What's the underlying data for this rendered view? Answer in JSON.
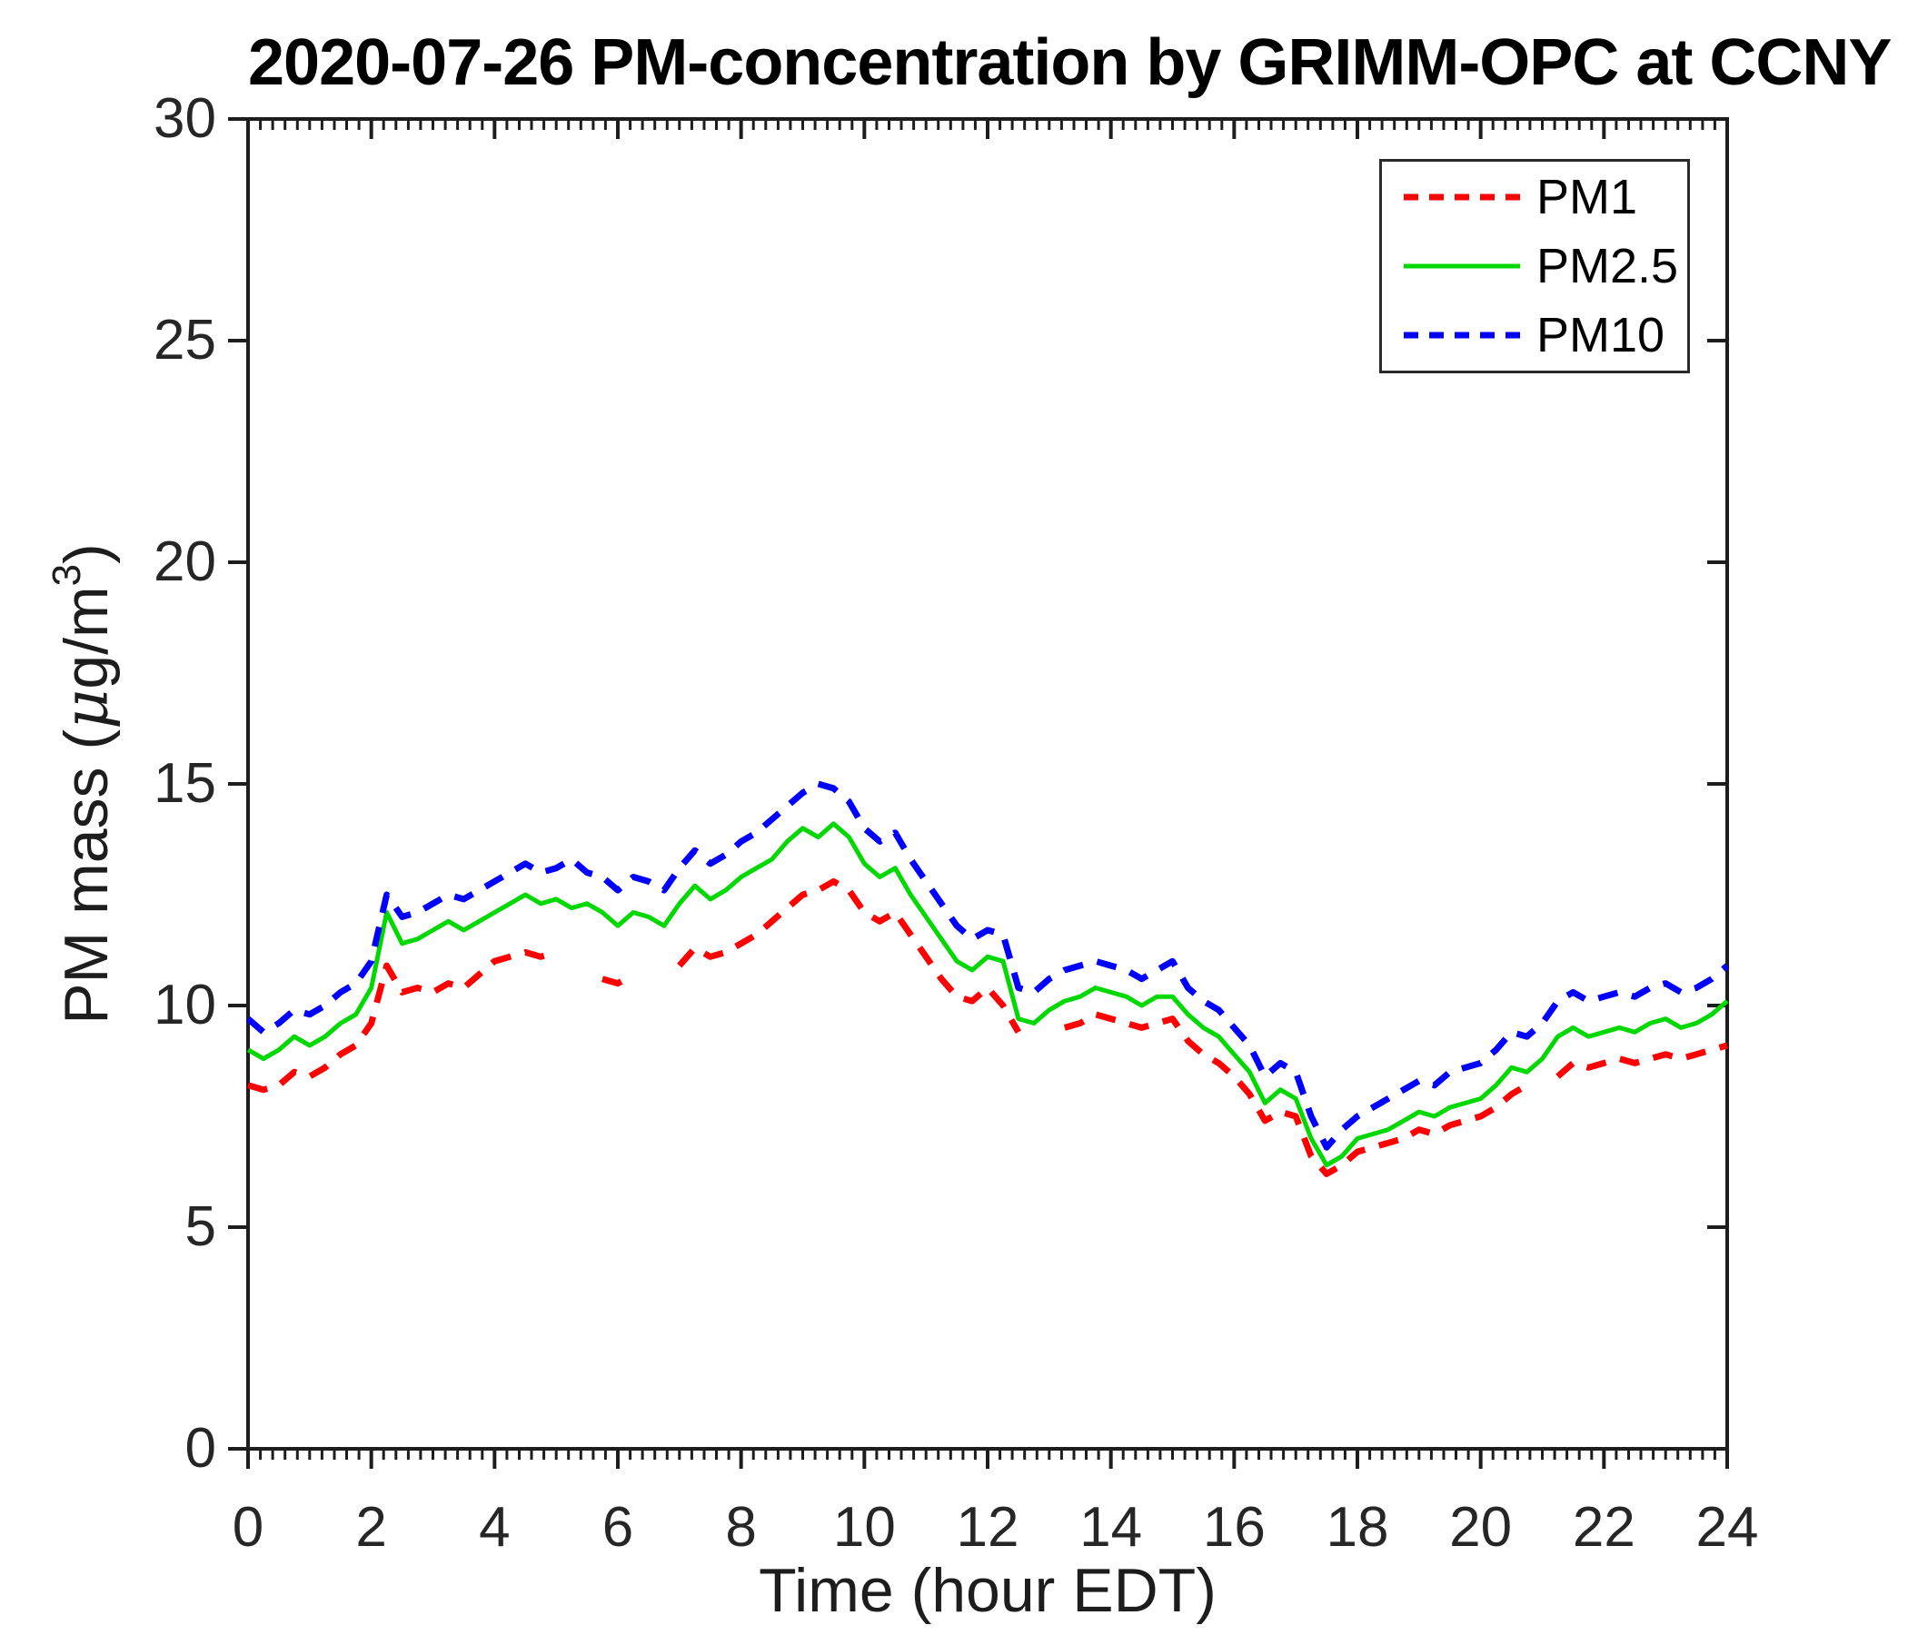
{
  "page": {
    "background": "#ffffff"
  },
  "chart_data": {
    "type": "line",
    "title": "2020-07-26 PM-concentration by GRIMM-OPC at CCNY",
    "xlabel": "Time (hour EDT)",
    "ylabel": "PM mass (μg/m3)",
    "ylabel_parts": {
      "pre": "PM mass (",
      "mu": "μ",
      "mid": "g/m",
      "sup": "3",
      "post": ")"
    },
    "xlim": [
      0,
      24
    ],
    "ylim": [
      0,
      30
    ],
    "xticks": [
      0,
      2,
      4,
      6,
      8,
      10,
      12,
      14,
      16,
      18,
      20,
      22,
      24
    ],
    "yticks": [
      0,
      5,
      10,
      15,
      20,
      25,
      30
    ],
    "x_minor_step": 0.2,
    "grid": false,
    "legend_position": "top-right",
    "axis_color": "#1d1d1d",
    "tick_label_color": "#262626",
    "x_unit": "hour EDT",
    "x_start": 0,
    "x_step": 0.25,
    "series": [
      {
        "name": "PM1",
        "color": "#ff0000",
        "line_style": "dashed",
        "dash": "22 16",
        "legend_dash": "16 12",
        "width": 7,
        "values": [
          8.2,
          8.1,
          8.2,
          8.5,
          8.4,
          8.6,
          8.9,
          9.1,
          9.6,
          10.9,
          10.3,
          10.4,
          10.3,
          10.5,
          10.4,
          10.7,
          11.0,
          11.1,
          11.2,
          11.1,
          11.2,
          null,
          null,
          10.6,
          10.5,
          10.7,
          null,
          null,
          10.9,
          11.3,
          11.1,
          11.2,
          11.4,
          11.6,
          11.9,
          12.2,
          12.5,
          12.6,
          12.8,
          12.6,
          12.1,
          11.9,
          12.1,
          11.6,
          11.1,
          10.6,
          10.2,
          10.1,
          10.4,
          10.0,
          9.4,
          null,
          null,
          9.5,
          9.6,
          9.8,
          9.7,
          9.6,
          9.5,
          9.6,
          9.7,
          9.2,
          8.9,
          8.7,
          8.4,
          8.0,
          7.4,
          7.6,
          7.5,
          6.6,
          6.2,
          6.4,
          6.7,
          6.8,
          6.9,
          7.0,
          7.2,
          7.1,
          7.3,
          7.4,
          7.5,
          7.7,
          8.0,
          8.2,
          null,
          8.4,
          8.7,
          8.6,
          8.7,
          8.8,
          8.7,
          8.8,
          8.9,
          8.8,
          8.9,
          9.0,
          9.1
        ]
      },
      {
        "name": "PM2.5",
        "color": "#00d800",
        "line_style": "solid",
        "dash": "none",
        "legend_dash": "none",
        "width": 5,
        "values": [
          9.0,
          8.8,
          9.0,
          9.3,
          9.1,
          9.3,
          9.6,
          9.8,
          10.4,
          12.1,
          11.4,
          11.5,
          11.7,
          11.9,
          11.7,
          11.9,
          12.1,
          12.3,
          12.5,
          12.3,
          12.4,
          12.2,
          12.3,
          12.1,
          11.8,
          12.1,
          12.0,
          11.8,
          12.3,
          12.7,
          12.4,
          12.6,
          12.9,
          13.1,
          13.3,
          13.7,
          14.0,
          13.8,
          14.1,
          13.8,
          13.2,
          12.9,
          13.1,
          12.5,
          12.0,
          11.5,
          11.0,
          10.8,
          11.1,
          11.0,
          9.7,
          9.6,
          9.9,
          10.1,
          10.2,
          10.4,
          10.3,
          10.2,
          10.0,
          10.2,
          10.2,
          9.8,
          9.5,
          9.3,
          8.9,
          8.5,
          7.8,
          8.1,
          7.9,
          7.0,
          6.4,
          6.6,
          7.0,
          7.1,
          7.2,
          7.4,
          7.6,
          7.5,
          7.7,
          7.8,
          7.9,
          8.2,
          8.6,
          8.5,
          8.8,
          9.3,
          9.5,
          9.3,
          9.4,
          9.5,
          9.4,
          9.6,
          9.7,
          9.5,
          9.6,
          9.8,
          10.1
        ]
      },
      {
        "name": "PM10",
        "color": "#0000ff",
        "line_style": "dashed",
        "dash": "22 16",
        "legend_dash": "16 12",
        "width": 7,
        "values": [
          9.7,
          9.4,
          9.6,
          9.9,
          9.8,
          10.0,
          10.3,
          10.5,
          11.0,
          12.5,
          12.0,
          12.1,
          12.3,
          12.5,
          12.4,
          12.6,
          12.8,
          13.0,
          13.2,
          13.0,
          13.1,
          13.3,
          13.0,
          12.9,
          12.6,
          12.9,
          12.8,
          12.6,
          13.1,
          13.5,
          13.2,
          13.4,
          13.7,
          13.9,
          14.2,
          14.5,
          14.8,
          15.0,
          14.9,
          14.6,
          14.0,
          13.7,
          13.9,
          13.3,
          12.8,
          12.3,
          11.8,
          11.5,
          11.7,
          11.6,
          10.4,
          10.3,
          10.6,
          10.8,
          10.9,
          11.0,
          10.9,
          10.8,
          10.6,
          10.8,
          11.0,
          10.4,
          10.1,
          9.9,
          9.5,
          9.1,
          8.4,
          8.7,
          8.5,
          7.5,
          6.8,
          7.2,
          7.5,
          7.7,
          7.9,
          8.1,
          8.3,
          8.2,
          8.5,
          8.6,
          8.7,
          9.0,
          9.4,
          9.3,
          9.6,
          10.1,
          10.3,
          10.1,
          10.2,
          10.3,
          10.2,
          10.4,
          10.5,
          10.3,
          10.4,
          10.6,
          10.9
        ]
      }
    ]
  }
}
